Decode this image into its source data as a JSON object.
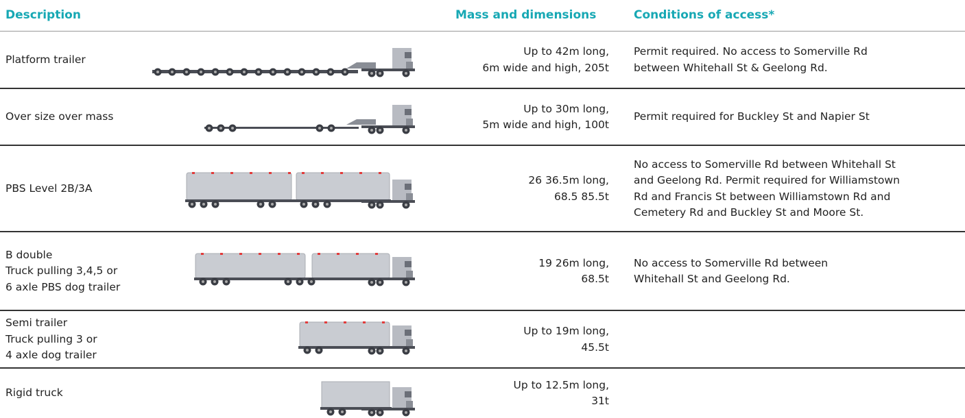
{
  "table": {
    "header": [
      "Description",
      "Mass and dimensions",
      "Conditions of access*"
    ],
    "rows": [
      {
        "description": [
          "Platform trailer"
        ],
        "mass": [
          "Up to 42m long,",
          "6m wide and high, 205t"
        ],
        "conditions": [
          "Permit required. No access to Somerville Rd",
          "between Whitehall St & Geelong Rd."
        ]
      },
      {
        "description": [
          "Over size over mass"
        ],
        "mass": [
          "Up to 30m long,",
          "5m wide and high, 100t"
        ],
        "conditions": [
          "Permit required for Buckley St and Napier St"
        ]
      },
      {
        "description": [
          "PBS Level 2B/3A"
        ],
        "mass": [
          "26 36.5m long,",
          "68.5 85.5t"
        ],
        "conditions": [
          "No access to Somerville Rd between Whitehall St",
          "and Geelong Rd. Permit required for Williamstown",
          "Rd and Francis St between  Williamstown Rd and",
          "Cemetery Rd and Buckley St and Moore St."
        ]
      },
      {
        "description": [
          "B double",
          "Truck pulling 3,4,5 or",
          "6 axle PBS dog trailer"
        ],
        "mass": [
          "19 26m long,",
          "68.5t"
        ],
        "conditions": [
          "No access to Somerville Rd between",
          "Whitehall St and Geelong Rd."
        ]
      },
      {
        "description": [
          "Semi trailer",
          "Truck pulling 3 or",
          "4 axle dog trailer"
        ],
        "mass": [
          "Up to 19m long,",
          "45.5t"
        ],
        "conditions": []
      },
      {
        "description": [
          "Rigid truck"
        ],
        "mass": [
          "Up to 12.5m long,",
          "31t"
        ],
        "conditions": []
      }
    ]
  }
}
